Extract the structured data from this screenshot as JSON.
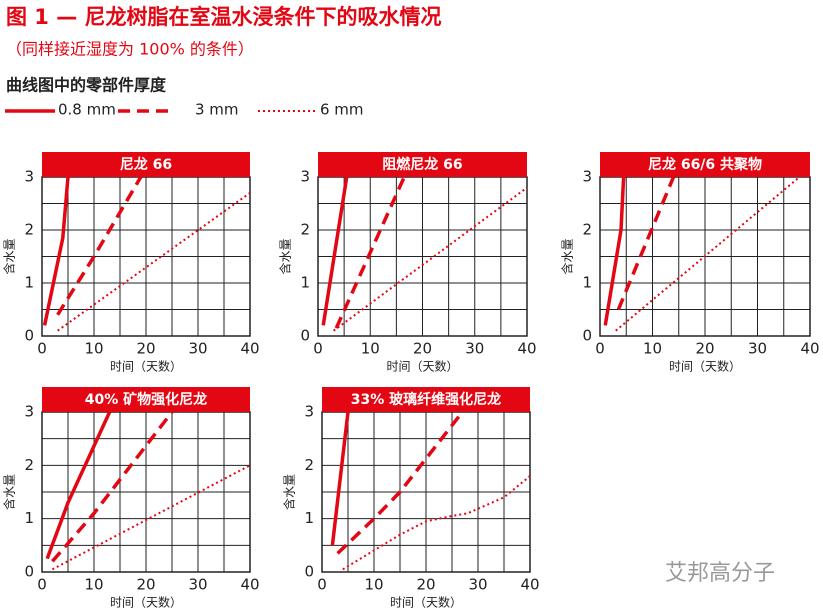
{
  "title": "图 1 — 尼龙树脂在室温水浸条件下的吸水情况",
  "subtitle": "（同样接近湿度为 100% 的条件）",
  "legend_title": "曲线图中的零部件厚度",
  "watermark": "艾邦高分子",
  "chart_data": [
    {
      "type": "line",
      "title": "尼龙 66",
      "xlabel": "时间（天数）",
      "ylabel": "含水量",
      "xlim": [
        0,
        40
      ],
      "ylim": [
        0,
        3
      ],
      "xticks": [
        0,
        10,
        20,
        30,
        40
      ],
      "yticks": [
        0,
        1,
        2,
        3
      ],
      "minor_xticks": [
        5,
        15,
        25,
        35
      ],
      "minor_yticks": [
        0.5,
        1.5,
        2.5
      ],
      "grid": true,
      "series": [
        {
          "name": "0.8 mm",
          "color": "#e30613",
          "dash": "solid",
          "x": [
            0.5,
            4,
            5
          ],
          "values": [
            0.2,
            1.85,
            3
          ]
        },
        {
          "name": "3 mm",
          "color": "#e30613",
          "dash": "dashed",
          "x": [
            3,
            10,
            19
          ],
          "values": [
            0.4,
            1.5,
            3
          ]
        },
        {
          "name": "6 mm",
          "color": "#e30613",
          "dash": "dotted",
          "x": [
            3,
            40
          ],
          "values": [
            0.1,
            2.7
          ]
        }
      ]
    },
    {
      "type": "line",
      "title": "阻燃尼龙 66",
      "xlabel": "时间（天数）",
      "ylabel": "含水量",
      "xlim": [
        0,
        40
      ],
      "ylim": [
        0,
        3
      ],
      "xticks": [
        0,
        10,
        20,
        30,
        40
      ],
      "yticks": [
        0,
        1,
        2,
        3
      ],
      "minor_xticks": [
        5,
        15,
        25,
        35
      ],
      "minor_yticks": [
        0.5,
        1.5,
        2.5
      ],
      "grid": true,
      "series": [
        {
          "name": "0.8 mm",
          "color": "#e30613",
          "dash": "solid",
          "x": [
            1,
            5.5
          ],
          "values": [
            0.2,
            3
          ]
        },
        {
          "name": "3 mm",
          "color": "#e30613",
          "dash": "dashed",
          "x": [
            3.5,
            16.5
          ],
          "values": [
            0.15,
            3
          ]
        },
        {
          "name": "6 mm",
          "color": "#e30613",
          "dash": "dotted",
          "x": [
            3,
            40
          ],
          "values": [
            0.1,
            2.8
          ]
        }
      ]
    },
    {
      "type": "line",
      "title": "尼龙 66/6 共聚物",
      "xlabel": "时间（天数）",
      "ylabel": "含水量",
      "xlim": [
        0,
        40
      ],
      "ylim": [
        0,
        3
      ],
      "xticks": [
        0,
        10,
        20,
        30,
        40
      ],
      "yticks": [
        0,
        1,
        2,
        3
      ],
      "minor_xticks": [
        5,
        15,
        25,
        35
      ],
      "minor_yticks": [
        0.5,
        1.5,
        2.5
      ],
      "grid": true,
      "series": [
        {
          "name": "0.8 mm",
          "color": "#e30613",
          "dash": "solid",
          "x": [
            1,
            4,
            4.5
          ],
          "values": [
            0.2,
            2,
            3
          ]
        },
        {
          "name": "3 mm",
          "color": "#e30613",
          "dash": "dashed",
          "x": [
            3.5,
            14
          ],
          "values": [
            0.5,
            3
          ]
        },
        {
          "name": "6 mm",
          "color": "#e30613",
          "dash": "dotted",
          "x": [
            3,
            38
          ],
          "values": [
            0.1,
            3
          ]
        }
      ]
    },
    {
      "type": "line",
      "title": "40% 矿物强化尼龙",
      "xlabel": "时间（天数）",
      "ylabel": "含水量",
      "xlim": [
        0,
        40
      ],
      "ylim": [
        0,
        3
      ],
      "xticks": [
        0,
        10,
        20,
        30,
        40
      ],
      "yticks": [
        0,
        1,
        2,
        3
      ],
      "minor_xticks": [
        5,
        15,
        25,
        35
      ],
      "minor_yticks": [
        0.5,
        1.5,
        2.5
      ],
      "grid": true,
      "series": [
        {
          "name": "0.8 mm",
          "color": "#e30613",
          "dash": "solid",
          "x": [
            1,
            5,
            13
          ],
          "values": [
            0.25,
            1.3,
            3
          ]
        },
        {
          "name": "3 mm",
          "color": "#e30613",
          "dash": "dashed",
          "x": [
            2,
            10,
            25
          ],
          "values": [
            0.2,
            1.1,
            3
          ]
        },
        {
          "name": "6 mm",
          "color": "#e30613",
          "dash": "dotted",
          "x": [
            2,
            40
          ],
          "values": [
            0.05,
            2
          ]
        }
      ]
    },
    {
      "type": "line",
      "title": "33% 玻璃纤维强化尼龙",
      "xlabel": "时间（天数）",
      "ylabel": "含水量",
      "xlim": [
        0,
        40
      ],
      "ylim": [
        0,
        3
      ],
      "xticks": [
        0,
        10,
        20,
        30,
        40
      ],
      "yticks": [
        0,
        1,
        2,
        3
      ],
      "minor_xticks": [
        5,
        15,
        25,
        35
      ],
      "minor_yticks": [
        0.5,
        1.5,
        2.5
      ],
      "grid": true,
      "series": [
        {
          "name": "0.8 mm",
          "color": "#e30613",
          "dash": "solid",
          "x": [
            2,
            5
          ],
          "values": [
            0.5,
            3
          ]
        },
        {
          "name": "3 mm",
          "color": "#e30613",
          "dash": "dashed",
          "x": [
            3,
            10,
            15,
            27
          ],
          "values": [
            0.35,
            1,
            1.5,
            3
          ]
        },
        {
          "name": "6 mm",
          "color": "#e30613",
          "dash": "dotted",
          "x": [
            4,
            15,
            20,
            25,
            28,
            35,
            40
          ],
          "values": [
            0.05,
            0.7,
            0.95,
            1.05,
            1.1,
            1.4,
            1.8
          ]
        }
      ]
    }
  ]
}
